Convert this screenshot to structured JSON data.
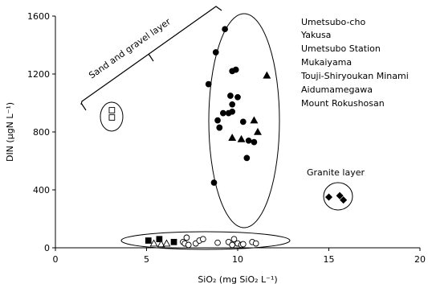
{
  "chart_data": {
    "type": "scatter",
    "xlabel": "SiO₂ (mg SiO₂ L⁻¹)",
    "ylabel": "DIN (μgN L⁻¹)",
    "xlim": [
      0,
      20
    ],
    "ylim": [
      0,
      1600
    ],
    "xticks": [
      0,
      5,
      10,
      15,
      20
    ],
    "yticks": [
      0,
      400,
      800,
      1200,
      1600
    ],
    "xtick_labels": [
      "0",
      "5",
      "10",
      "15",
      "20"
    ],
    "ytick_labels": [
      "0",
      "400",
      "800",
      "1200",
      "1600"
    ],
    "grid": false,
    "legend_position": "top-right",
    "legend_entries": [
      "Umetsubo-cho",
      "Yakusa",
      "Umetsubo Station",
      "Mukaiyama",
      "Touji-Shiryoukan Minami",
      "Aidumamegawa",
      "Mount Rokushosan"
    ],
    "annotations": {
      "sand_gravel": "Sand and gravel layer",
      "granite": "Granite layer"
    },
    "series": [
      {
        "marker": "filled-circle",
        "x": [
          9.3,
          8.8,
          8.4,
          9.7,
          9.9,
          9.6,
          10.0,
          9.7,
          9.2,
          9.5,
          8.9,
          9.0,
          9.0,
          9.7,
          10.6,
          10.3,
          10.9,
          10.5,
          8.7
        ],
        "y": [
          1510,
          1350,
          1130,
          1220,
          1230,
          1050,
          1040,
          990,
          930,
          930,
          880,
          830,
          830,
          940,
          740,
          870,
          730,
          620,
          450
        ]
      },
      {
        "marker": "filled-triangle",
        "x": [
          11.6,
          10.9,
          11.1,
          10.2,
          9.7
        ],
        "y": [
          1190,
          880,
          800,
          750,
          760
        ]
      },
      {
        "marker": "open-square",
        "x": [
          3.1,
          3.1
        ],
        "y": [
          950,
          900
        ]
      },
      {
        "marker": "filled-diamond",
        "x": [
          15.0,
          15.6,
          15.8
        ],
        "y": [
          350,
          360,
          330
        ]
      },
      {
        "marker": "filled-square",
        "x": [
          5.1,
          5.7,
          6.5
        ],
        "y": [
          50,
          60,
          40
        ]
      },
      {
        "marker": "open-triangle",
        "x": [
          5.4,
          5.8,
          6.1
        ],
        "y": [
          30,
          25,
          30
        ]
      },
      {
        "marker": "open-circle",
        "x": [
          7.0,
          7.1,
          7.3,
          7.7,
          7.9,
          8.1,
          8.9,
          9.5,
          9.7,
          9.8,
          10.0,
          10.2,
          10.3,
          10.8,
          11.0,
          7.2
        ],
        "y": [
          40,
          30,
          20,
          30,
          50,
          60,
          35,
          40,
          20,
          60,
          30,
          20,
          25,
          40,
          30,
          70
        ]
      }
    ]
  }
}
